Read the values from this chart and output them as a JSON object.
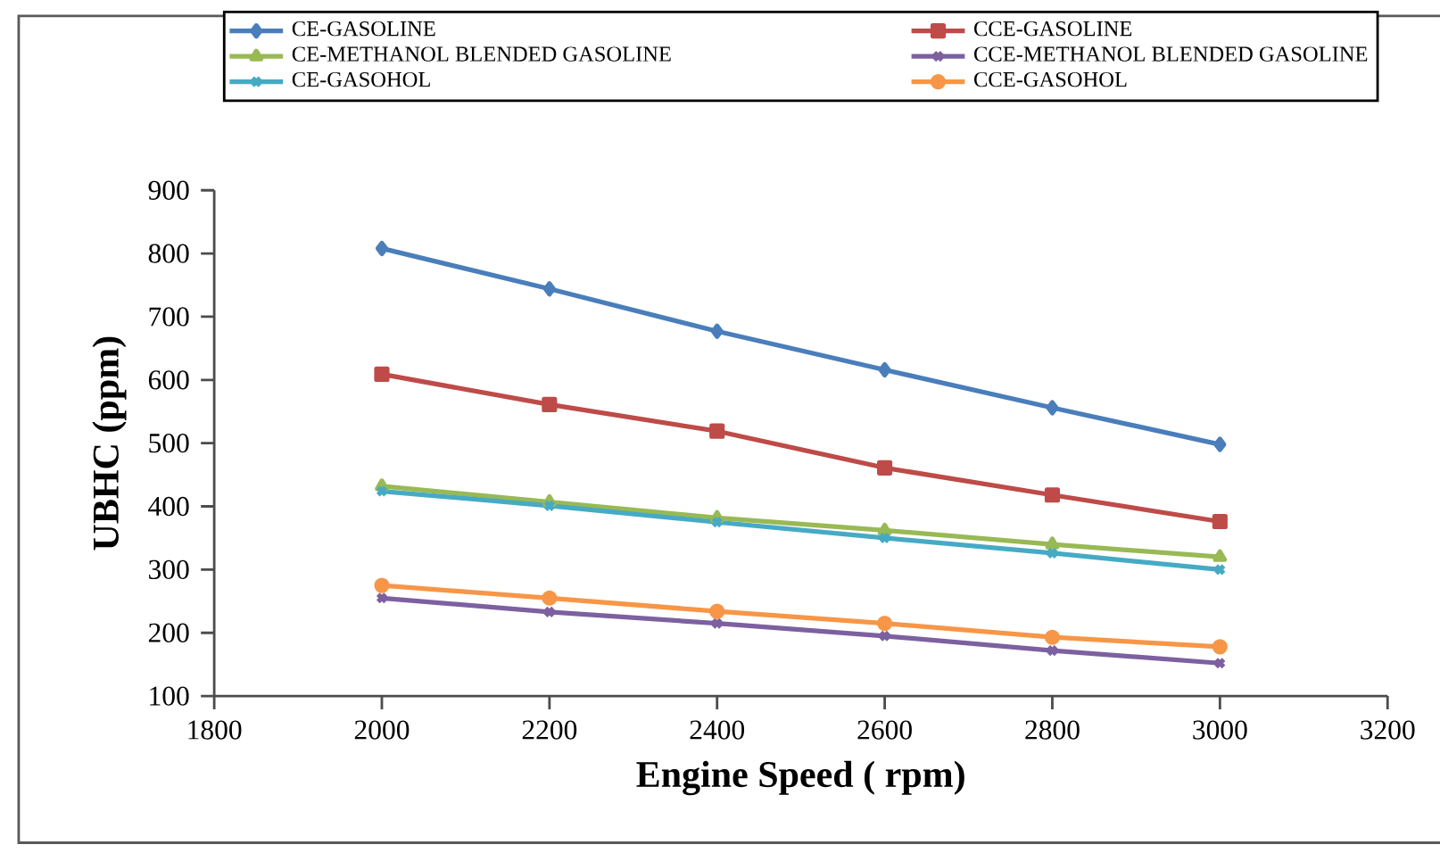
{
  "chart_data": {
    "type": "line",
    "xlabel": "Engine Speed ( rpm)",
    "ylabel": "UBHC (ppm)",
    "x": [
      2000,
      2200,
      2400,
      2600,
      2800,
      3000
    ],
    "series": [
      {
        "name": "CE-GASOLINE",
        "color": "#4a7ebb",
        "marker": "diamond",
        "values": [
          808,
          744,
          677,
          616,
          556,
          498
        ]
      },
      {
        "name": "CCE-GASOLINE",
        "color": "#be4b48",
        "marker": "square",
        "values": [
          609,
          561,
          519,
          461,
          418,
          376
        ]
      },
      {
        "name": "CE-METHANOL BLENDED GASOLINE",
        "color": "#98b954",
        "marker": "triangle",
        "values": [
          432,
          407,
          382,
          362,
          340,
          320
        ]
      },
      {
        "name": "CCE-METHANOL BLENDED GASOLINE",
        "color": "#7d60a0",
        "marker": "cross",
        "values": [
          255,
          233,
          215,
          195,
          172,
          152
        ]
      },
      {
        "name": "CE-GASOHOL",
        "color": "#46aac5",
        "marker": "cross",
        "values": [
          424,
          401,
          375,
          350,
          326,
          300
        ]
      },
      {
        "name": "CCE-GASOHOL",
        "color": "#f79646",
        "marker": "circle",
        "values": [
          275,
          255,
          234,
          215,
          193,
          178
        ]
      }
    ],
    "xlim": [
      1800,
      3200
    ],
    "xticks": [
      1800,
      2000,
      2200,
      2400,
      2600,
      2800,
      3000,
      3200
    ],
    "ylim": [
      100,
      900
    ],
    "yticks": [
      100,
      200,
      300,
      400,
      500,
      600,
      700,
      800,
      900
    ],
    "grid": false,
    "legend": "top",
    "line_style": "solid"
  }
}
